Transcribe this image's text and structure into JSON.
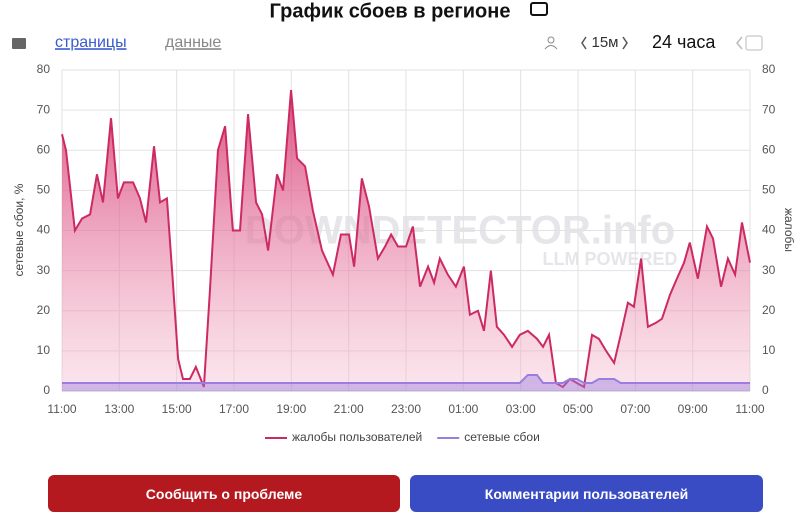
{
  "header": {
    "title": "График сбоев в регионе",
    "tabs": [
      "страницы",
      "данные"
    ],
    "interval": "15м",
    "period": "24 часа"
  },
  "watermark": [
    "DOWNDETECTOR.info",
    "LLM POWERED"
  ],
  "buttons": [
    "Сообщить о проблеме",
    "Комментарии пользователей"
  ],
  "chart_data": {
    "type": "area",
    "ylabel": "сетевые сбои, %",
    "y2label": "жалобы",
    "x": [
      0,
      0.14,
      0.45,
      0.7,
      0.98,
      1.22,
      1.43,
      1.71,
      1.95,
      2.16,
      2.48,
      2.72,
      2.93,
      3.21,
      3.42,
      3.66,
      3.84,
      4.05,
      4.22,
      4.46,
      4.67,
      4.95,
      5.16,
      5.44,
      5.69,
      5.96,
      6.21,
      6.49,
      6.77,
      6.98,
      7.19,
      7.5,
      7.71,
      7.99,
      8.2,
      8.48,
      8.75,
      9.07,
      9.45,
      9.73,
      10.01,
      10.19,
      10.46,
      10.71,
      11.02,
      11.27,
      11.48,
      11.72,
      12,
      12.24,
      12.49,
      12.77,
      12.98,
      13.18,
      13.46,
      13.74,
      14.02,
      14.23,
      14.51,
      14.72,
      14.96,
      15.17,
      15.42,
      15.7,
      15.97,
      16.25,
      16.57,
      16.78,
      16.99,
      17.23,
      17.47,
      17.72,
      17.96,
      18.21,
      18.49,
      18.73,
      18.98,
      19.26,
      19.49,
      19.74,
      19.95,
      20.2,
      20.44,
      20.72,
      20.93,
      21.21,
      21.45,
      21.7,
      21.9,
      22.18,
      22.5,
      22.71,
      22.99,
      23.23,
      23.48,
      23.72,
      24
    ],
    "series": [
      {
        "name": "жалобы пользователей",
        "color": "#cc2a63",
        "axis": "y2",
        "values": [
          64,
          60,
          40,
          43,
          44,
          54,
          47,
          68,
          48,
          52,
          52,
          48,
          42,
          61,
          47,
          48,
          30,
          8,
          3,
          3,
          6,
          1,
          25,
          60,
          66,
          40,
          40,
          69,
          47,
          44,
          35,
          54,
          50,
          75,
          58,
          56,
          45,
          35,
          29,
          39,
          39,
          31,
          53,
          46,
          33,
          36,
          39,
          36,
          36,
          41,
          26,
          31,
          27,
          33,
          29,
          26,
          31,
          19,
          20,
          15,
          30,
          16,
          14,
          11,
          14,
          15,
          13,
          11,
          14,
          2,
          1,
          3,
          2,
          1,
          14,
          13,
          10,
          7,
          14,
          22,
          21,
          33,
          16,
          17,
          18,
          24,
          28,
          32,
          37,
          28,
          41,
          38,
          26,
          33,
          29,
          42,
          32
        ]
      },
      {
        "name": "сетевые сбои",
        "color": "#9b7de0",
        "values": [
          2,
          2,
          2,
          2,
          2,
          2,
          2,
          2,
          2,
          2,
          2,
          2,
          2,
          2,
          2,
          2,
          2,
          2,
          2,
          2,
          2,
          2,
          2,
          2,
          2,
          2,
          2,
          2,
          2,
          2,
          2,
          2,
          2,
          2,
          2,
          2,
          2,
          2,
          2,
          2,
          2,
          2,
          2,
          2,
          2,
          2,
          2,
          2,
          2,
          2,
          2,
          2,
          2,
          2,
          2,
          2,
          2,
          2,
          2,
          2,
          2,
          2,
          2,
          2,
          2,
          4,
          4,
          2,
          2,
          2,
          2,
          3,
          3,
          2,
          2,
          3,
          3,
          3,
          2,
          2,
          2,
          2,
          2,
          2,
          2,
          2,
          2,
          2,
          2,
          2,
          2,
          2,
          2,
          2,
          2,
          2,
          2
        ]
      }
    ],
    "xlim": [
      0,
      24
    ],
    "xticks": [
      {
        "value": 0,
        "label": "11:00"
      },
      {
        "value": 2,
        "label": "13:00"
      },
      {
        "value": 4,
        "label": "15:00"
      },
      {
        "value": 6,
        "label": "17:00"
      },
      {
        "value": 8,
        "label": "19:00"
      },
      {
        "value": 10,
        "label": "21:00"
      },
      {
        "value": 12,
        "label": "23:00"
      },
      {
        "value": 14,
        "label": "01:00"
      },
      {
        "value": 16,
        "label": "03:00"
      },
      {
        "value": 18,
        "label": "05:00"
      },
      {
        "value": 20,
        "label": "07:00"
      },
      {
        "value": 22,
        "label": "09:00"
      },
      {
        "value": 24,
        "label": "11:00"
      }
    ],
    "ylim": [
      0,
      80
    ],
    "yticks": [
      0,
      10,
      20,
      30,
      40,
      50,
      60,
      70,
      80
    ],
    "y2lim": [
      0,
      80
    ],
    "y2ticks": [
      0,
      10,
      20,
      30,
      40,
      50,
      60,
      70,
      80
    ],
    "grid": true,
    "legend": "bottom"
  }
}
